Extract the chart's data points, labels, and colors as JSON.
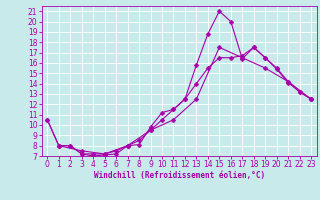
{
  "xlabel": "Windchill (Refroidissement éolien,°C)",
  "xlim": [
    -0.5,
    23.5
  ],
  "ylim": [
    7,
    21.5
  ],
  "xticks": [
    0,
    1,
    2,
    3,
    4,
    5,
    6,
    7,
    8,
    9,
    10,
    11,
    12,
    13,
    14,
    15,
    16,
    17,
    18,
    19,
    20,
    21,
    22,
    23
  ],
  "yticks": [
    7,
    8,
    9,
    10,
    11,
    12,
    13,
    14,
    15,
    16,
    17,
    18,
    19,
    20,
    21
  ],
  "line_color": "#aa00aa",
  "bg_color": "#c8eaea",
  "grid_color": "#ffffff",
  "line1_x": [
    0,
    1,
    2,
    3,
    4,
    5,
    6,
    7,
    8,
    9,
    10,
    11,
    12,
    13,
    14,
    15,
    16,
    17,
    18,
    19,
    20,
    21,
    22,
    23
  ],
  "line1_y": [
    10.5,
    8.0,
    8.0,
    7.2,
    7.0,
    7.1,
    7.2,
    8.0,
    8.1,
    9.8,
    11.2,
    11.5,
    12.5,
    15.8,
    18.8,
    21.0,
    20.0,
    16.4,
    17.5,
    16.5,
    15.4,
    14.1,
    13.2,
    12.5
  ],
  "line2_x": [
    0,
    1,
    2,
    3,
    4,
    5,
    6,
    7,
    8,
    9,
    10,
    11,
    12,
    13,
    14,
    15,
    16,
    17,
    18,
    19,
    20,
    21,
    22,
    23
  ],
  "line2_y": [
    10.5,
    8.0,
    8.0,
    7.2,
    7.2,
    7.2,
    7.5,
    8.0,
    8.5,
    9.5,
    10.5,
    11.5,
    12.5,
    14.0,
    15.5,
    16.5,
    16.5,
    16.7,
    17.5,
    16.5,
    15.5,
    14.2,
    13.2,
    12.5
  ],
  "line3_x": [
    1,
    3,
    5,
    7,
    9,
    11,
    13,
    15,
    17,
    19,
    21,
    23
  ],
  "line3_y": [
    8.0,
    7.5,
    7.2,
    8.0,
    9.5,
    10.5,
    12.5,
    17.5,
    16.5,
    15.5,
    14.2,
    12.5
  ],
  "marker": "D",
  "marker_size": 2.5,
  "linewidth": 0.8,
  "tick_fontsize": 5.5,
  "xlabel_fontsize": 5.5
}
